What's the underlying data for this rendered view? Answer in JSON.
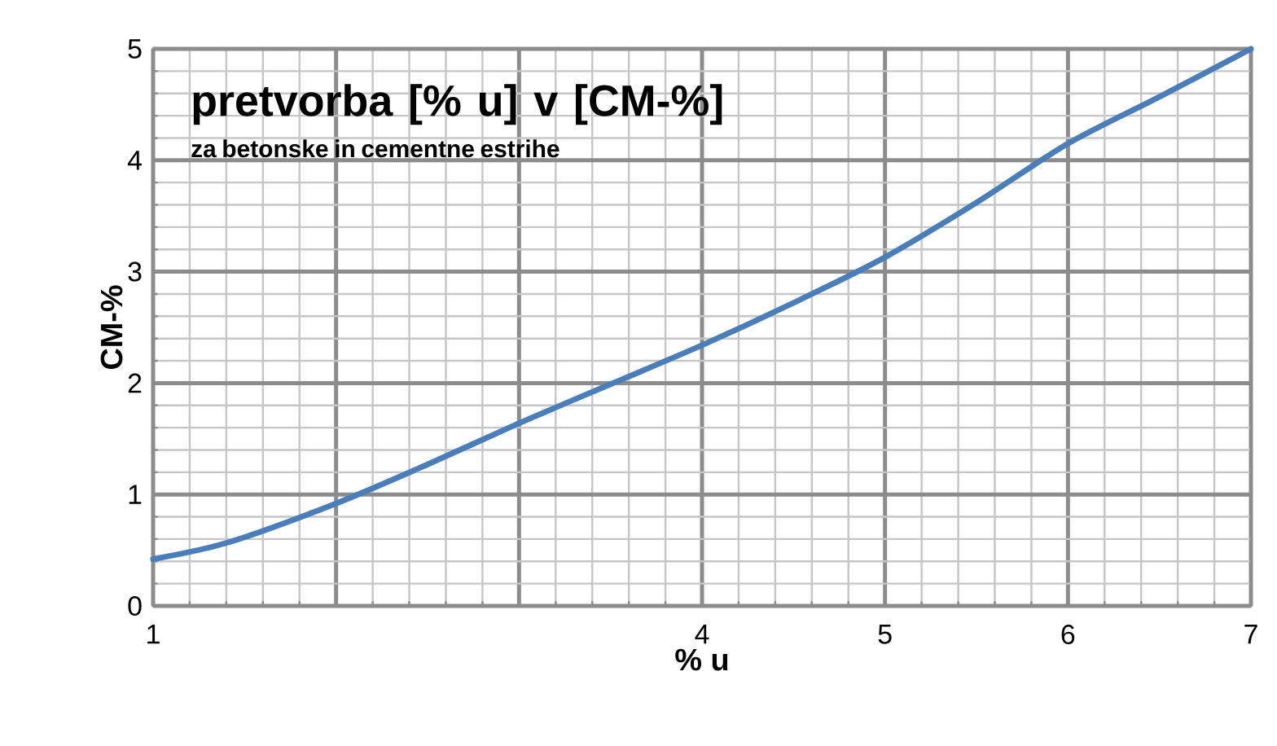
{
  "chart_data": {
    "type": "line",
    "title": "pretvorba [% u] v [CM-%]",
    "subtitle": "za betonske in cementne estrihe",
    "xlabel": "% u",
    "ylabel": "CM-%",
    "x": [
      1,
      1.41,
      2,
      2.5,
      3,
      3.5,
      4,
      4.5,
      5,
      5.5,
      6,
      6.5,
      7
    ],
    "series": [
      {
        "color": "#4a7ebb",
        "values": [
          0.42,
          0.57,
          0.92,
          1.27,
          1.64,
          1.99,
          2.34,
          2.72,
          3.13,
          3.62,
          4.15,
          4.57,
          5.0
        ]
      }
    ],
    "xlim": [
      1,
      7
    ],
    "ylim": [
      0,
      5
    ],
    "xticks": [
      1,
      {
        "value": 2,
        "label": null
      },
      {
        "value": 3,
        "label": null
      },
      4,
      5,
      6,
      7
    ],
    "yticks": [
      0,
      1,
      2,
      3,
      4,
      5
    ],
    "grid": true
  }
}
